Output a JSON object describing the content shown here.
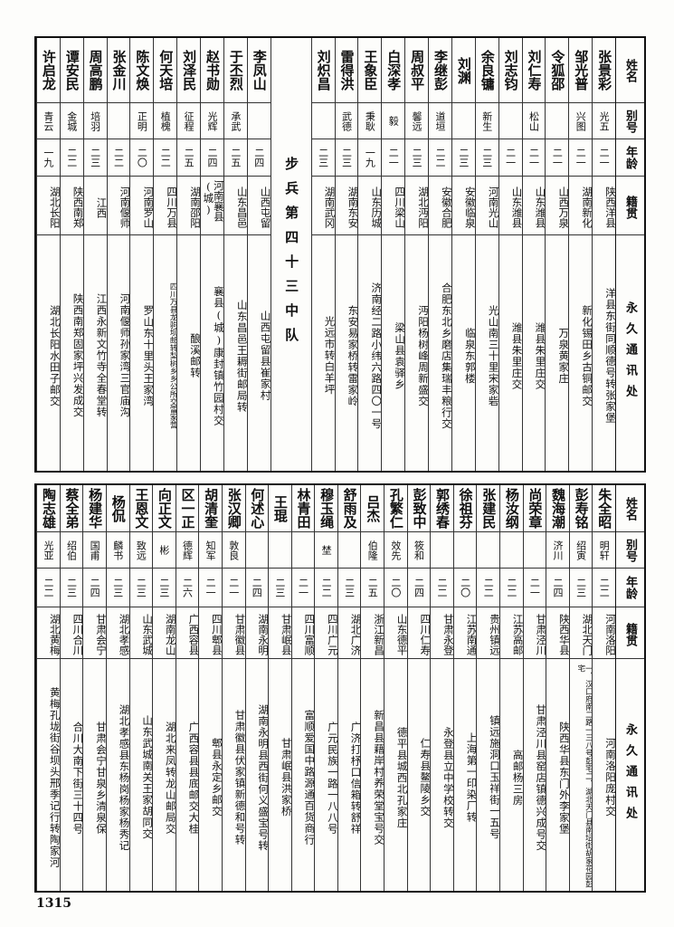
{
  "headers": {
    "name": "姓名",
    "alias": "别号",
    "age": "年龄",
    "native": "籍贯",
    "address": "永久通讯处"
  },
  "top_table": {
    "right_rows": [
      [
        "张景彩",
        "光五",
        "二一",
        "陕西洋县",
        "洋县东街同顺德号转张家堡"
      ],
      [
        "邹光普",
        "兴图",
        "二一",
        "湖南新化",
        "新化锡田乡古铜邮交"
      ],
      [
        "令狐邵",
        "",
        "二一",
        "山西万泉",
        "万泉黄家庄"
      ],
      [
        "刘仁寿",
        "松山",
        "二一",
        "山东潍县",
        "潍县朱里庄交"
      ],
      [
        "刘志钧",
        "",
        "二一",
        "山东潍县",
        "潍县朱里庄交"
      ],
      [
        "余良镛",
        "新生",
        "二三",
        "河南光山",
        "光山南三十里宋家砦"
      ],
      [
        "刘渊",
        "",
        "二三",
        "安徽临泉",
        "临泉东郭楼"
      ],
      [
        "李继彭",
        "道垣",
        "二二",
        "安徽合肥",
        "合肥东北乡磨店集瑞丰粮行交"
      ],
      [
        "周叔平",
        "馨远",
        "二三",
        "湖北沔阳",
        "沔阳杨树峰周新盛交"
      ],
      [
        "白深孝",
        "毅",
        "二一",
        "四川梁山",
        "梁山县袁驿乡"
      ],
      [
        "王象臣",
        "秉耿",
        "一九",
        "山东历城",
        "济南经二路小纬六路四〇一号"
      ],
      [
        "雷得洪",
        "武德",
        "二三",
        "湖南东安",
        "东安易家桥转雷家岭"
      ],
      [
        "刘炽昌",
        "",
        "二三",
        "湖南武冈",
        "光远市转白羊坪"
      ]
    ],
    "divider": "步兵第四十三中队",
    "left_rows": [
      [
        "李凤山",
        "",
        "二四",
        "山西屯留",
        "山西屯留县崔家村"
      ],
      [
        "于丕烈",
        "承武",
        "二五",
        "山东昌邑",
        "山东昌邑王耨街邮局转"
      ],
      [
        "赵书勋",
        "光辉",
        "二四",
        "河南襄县(城)",
        "襄县(城)康封镇竹园村交"
      ],
      [
        "刘泽民",
        "征程",
        "二五",
        "湖南邵阳",
        "酿溪邮转"
      ],
      [
        "何天培",
        "植槐",
        "二二",
        "四川万县",
        "四川万县龙驹坝邮转梨树乡乡公所交雷家营"
      ],
      [
        "陈文焕",
        "正明",
        "二〇",
        "河南罗山",
        "罗山东十里头王家湾"
      ],
      [
        "张金川",
        "",
        "二二",
        "河南偃师",
        "河南偃师孙家湾三官庙沟"
      ],
      [
        "周高鹏",
        "培羽",
        "二三",
        "江西",
        "江西永新文竹寺全春堂转"
      ],
      [
        "谭安民",
        "金城",
        "二二",
        "陕西南郑",
        "陕西南郑固家坪兴发成交"
      ],
      [
        "许启龙",
        "青云",
        "一九",
        "湖北长阳",
        "湖北长阳水田子邮交"
      ]
    ]
  },
  "bottom_table": {
    "rows": [
      [
        "朱全昭",
        "明轩",
        "二二",
        "河南洛阳",
        "河南洛阳庞村交"
      ],
      [
        "彭寿铭",
        "绍寅",
        "二三",
        "湖北天门",
        "一、汉口府南二路一三八号彭宅二、湖北天门县南坛街胡家花园彭宅"
      ],
      [
        "魏海潮",
        "济川",
        "二四",
        "陕西华县",
        "陕西华县东门外李家堡"
      ],
      [
        "尚荣章",
        "",
        "二一",
        "甘肃泾川",
        "甘肃泾川县窑店镇德兴成号交"
      ],
      [
        "杨汝纲",
        "",
        "二二",
        "江苏高邮",
        "高邮杨三房"
      ],
      [
        "张建民",
        "",
        "二二",
        "贵州镇远",
        "镇远施洞口玉祥街一五号"
      ],
      [
        "徐祖芬",
        "",
        "二〇",
        "江苏南通",
        "上海第一印染厂转"
      ],
      [
        "郭绣春",
        "",
        "二二",
        "甘肃永登",
        "永登县立中学校转交"
      ],
      [
        "彭致中",
        "筱和",
        "二四",
        "四川仁寿",
        "仁寿县鳌陵乡交"
      ],
      [
        "孔繁仁",
        "效先",
        "二〇",
        "山东德平",
        "德平县城西北孔家庄"
      ],
      [
        "吕杰",
        "伯隆",
        "二五",
        "浙江新昌",
        "新昌县藉岸村养荣堂宝号交"
      ],
      [
        "舒雨及",
        "",
        "二三",
        "湖北广济",
        "广济打杼口信箱转舒祥"
      ],
      [
        "穆玉绳",
        "埜",
        "二二",
        "四川广元",
        "广元民族一路一八八号"
      ],
      [
        "林青田",
        "",
        "二一",
        "四川富顺",
        "富顺爱国中路源通百货商行"
      ],
      [
        "王琨",
        "",
        "二三",
        "甘肃岷县",
        "甘肃岷县洪家桥"
      ],
      [
        "何述心",
        "",
        "二四",
        "湖南永明",
        "湖南永明县西街何义盛宝号转"
      ],
      [
        "张汉卿",
        "敦良",
        "二一",
        "甘肃徽县",
        "甘肃徽县伏家镇新德和号转"
      ],
      [
        "胡清奎",
        "知军",
        "二一",
        "四川郫县",
        "郫县永定乡邮交"
      ],
      [
        "区一正",
        "德辉",
        "二六",
        "广西容县",
        "广西容县县底邮交大桂"
      ],
      [
        "向正文",
        "彬",
        "二三",
        "湖南龙山",
        "湖北来凤转龙山邮局交"
      ],
      [
        "王恩文",
        "致远",
        "二三",
        "山东武城",
        "山东武城南关王家胡同交"
      ],
      [
        "杨侃",
        "麟书",
        "二三",
        "湖北孝感",
        "湖北孝感县东杨岗杨家杨秀记"
      ],
      [
        "杨建华",
        "国甫",
        "二四",
        "甘肃会宁",
        "甘肃会宁甘泉乡清泉保"
      ],
      [
        "蔡全弟",
        "绍伯",
        "二三",
        "四川合川",
        "合川大南下街三十四号"
      ],
      [
        "陶志雄",
        "光亚",
        "二二",
        "湖北黄梅",
        "黄梅孔垅街谷坝头邢季记行转陶家河"
      ]
    ]
  },
  "page_number": "1315"
}
